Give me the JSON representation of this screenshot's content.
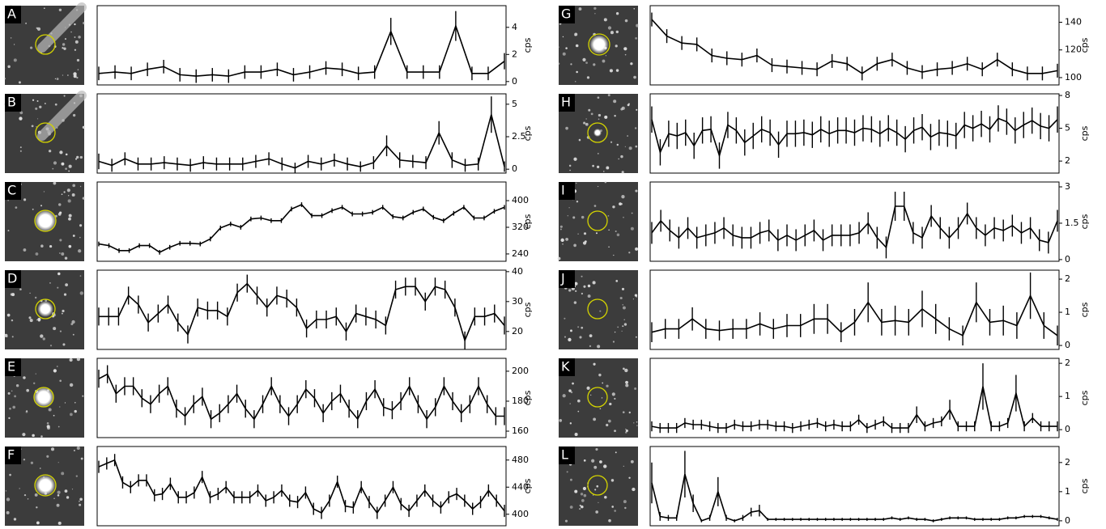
{
  "chart_data": [
    {
      "type": "line",
      "title": "A",
      "ylabel": "cps",
      "color": "#000000",
      "ylim": [
        -0.25,
        5.6
      ],
      "yticks": [
        0,
        2,
        4
      ],
      "values": [
        0.6,
        0.7,
        0.6,
        0.9,
        1.1,
        0.5,
        0.4,
        0.5,
        0.4,
        0.7,
        0.7,
        0.9,
        0.5,
        0.7,
        1.0,
        0.9,
        0.6,
        0.7,
        3.7,
        0.7,
        0.7,
        0.7,
        4.1,
        0.6,
        0.6,
        1.5
      ],
      "errors": [
        0.5,
        0.5,
        0.5,
        0.5,
        0.5,
        0.5,
        0.5,
        0.5,
        0.5,
        0.5,
        0.5,
        0.5,
        0.5,
        0.5,
        0.5,
        0.5,
        0.5,
        0.5,
        1.0,
        0.5,
        0.5,
        0.5,
        1.1,
        0.5,
        0.5,
        0.6
      ]
    },
    {
      "type": "line",
      "title": "B",
      "ylabel": "cps",
      "color": "#000000",
      "ylim": [
        -0.3,
        5.8
      ],
      "yticks": [
        0,
        2.5,
        5
      ],
      "values": [
        0.6,
        0.3,
        0.8,
        0.4,
        0.4,
        0.5,
        0.4,
        0.3,
        0.5,
        0.4,
        0.4,
        0.4,
        0.6,
        0.8,
        0.4,
        0.1,
        0.6,
        0.4,
        0.7,
        0.4,
        0.2,
        0.5,
        1.8,
        0.7,
        0.6,
        0.5,
        2.8,
        0.7,
        0.3,
        0.4,
        4.2,
        0.2
      ],
      "errors": [
        0.6,
        0.5,
        0.5,
        0.5,
        0.5,
        0.5,
        0.5,
        0.5,
        0.5,
        0.5,
        0.5,
        0.5,
        0.5,
        0.5,
        0.5,
        0.4,
        0.5,
        0.5,
        0.5,
        0.5,
        0.4,
        0.5,
        0.8,
        0.6,
        0.5,
        0.5,
        0.9,
        0.6,
        0.5,
        0.5,
        1.4,
        0.4
      ]
    },
    {
      "type": "line",
      "title": "C",
      "ylabel": "cps",
      "color": "#000000",
      "ylim": [
        218,
        456
      ],
      "yticks": [
        240,
        320,
        400
      ],
      "values": [
        270,
        265,
        250,
        250,
        265,
        265,
        245,
        260,
        272,
        272,
        270,
        285,
        318,
        330,
        320,
        345,
        348,
        340,
        340,
        375,
        388,
        355,
        355,
        370,
        380,
        360,
        360,
        365,
        380,
        352,
        348,
        365,
        375,
        350,
        340,
        362,
        380,
        348,
        348,
        368,
        380
      ],
      "errors": [
        7,
        7,
        7,
        7,
        7,
        7,
        7,
        7,
        7,
        7,
        7,
        7,
        7,
        7,
        7,
        7,
        7,
        7,
        7,
        7,
        7,
        7,
        7,
        7,
        7,
        7,
        7,
        7,
        7,
        7,
        7,
        7,
        7,
        7,
        7,
        7,
        7,
        7,
        7,
        7,
        7
      ]
    },
    {
      "type": "line",
      "title": "D",
      "ylabel": "cps",
      "color": "#000000",
      "ylim": [
        14,
        40.5
      ],
      "yticks": [
        20,
        30,
        40
      ],
      "values": [
        25,
        25,
        25,
        32,
        29,
        23,
        26,
        29,
        23,
        19,
        28,
        27,
        27,
        25,
        33,
        36,
        32,
        28,
        32,
        31,
        28,
        21,
        24,
        24,
        25,
        20,
        26,
        25,
        24,
        22,
        34,
        35,
        35,
        30,
        35,
        34,
        28,
        17,
        25,
        25,
        26,
        22
      ],
      "errors": [
        3,
        3,
        3,
        3,
        3,
        3,
        3,
        3,
        3,
        3,
        3,
        3,
        3,
        3,
        3,
        3,
        3,
        3,
        3,
        3,
        3,
        3,
        3,
        3,
        3,
        3,
        3,
        3,
        3,
        3,
        3,
        3,
        3,
        3,
        3,
        3,
        3,
        3,
        3,
        3,
        3,
        3
      ]
    },
    {
      "type": "line",
      "title": "E",
      "ylabel": "cps",
      "color": "#000000",
      "ylim": [
        155.7,
        208.6
      ],
      "yticks": [
        160,
        180,
        200
      ],
      "values": [
        195,
        198,
        185,
        190,
        190,
        182,
        178,
        185,
        190,
        175,
        170,
        178,
        183,
        168,
        172,
        178,
        185,
        175,
        168,
        178,
        190,
        178,
        170,
        178,
        188,
        182,
        172,
        180,
        185,
        175,
        168,
        180,
        188,
        176,
        174,
        180,
        190,
        178,
        168,
        176,
        190,
        180,
        172,
        178,
        190,
        178,
        170,
        170
      ],
      "errors": [
        6,
        6,
        6,
        6,
        6,
        6,
        6,
        6,
        6,
        6,
        6,
        6,
        6,
        6,
        6,
        6,
        6,
        6,
        6,
        6,
        6,
        6,
        6,
        6,
        6,
        6,
        6,
        6,
        6,
        6,
        6,
        6,
        6,
        6,
        6,
        6,
        6,
        6,
        6,
        6,
        6,
        6,
        6,
        6,
        6,
        6,
        6,
        6
      ]
    },
    {
      "type": "line",
      "title": "F",
      "ylabel": "cps",
      "color": "#000000",
      "ylim": [
        383,
        500
      ],
      "yticks": [
        400,
        440,
        480
      ],
      "values": [
        470,
        475,
        480,
        447,
        440,
        450,
        450,
        428,
        430,
        445,
        425,
        425,
        432,
        455,
        425,
        430,
        440,
        425,
        425,
        425,
        435,
        420,
        425,
        435,
        420,
        418,
        432,
        408,
        402,
        420,
        448,
        412,
        410,
        440,
        418,
        402,
        420,
        440,
        415,
        405,
        420,
        435,
        420,
        410,
        425,
        430,
        420,
        408,
        418,
        435,
        420,
        405
      ],
      "errors": [
        9,
        9,
        9,
        9,
        9,
        9,
        9,
        9,
        9,
        9,
        9,
        9,
        9,
        9,
        9,
        9,
        9,
        9,
        9,
        9,
        9,
        9,
        9,
        9,
        9,
        9,
        9,
        9,
        9,
        9,
        9,
        9,
        9,
        9,
        9,
        9,
        9,
        9,
        9,
        9,
        9,
        9,
        9,
        9,
        9,
        9,
        9,
        9,
        9,
        9,
        9,
        9
      ]
    },
    {
      "type": "line",
      "title": "G",
      "ylabel": "cps",
      "color": "#000000",
      "ylim": [
        94.7,
        152
      ],
      "yticks": [
        100,
        120,
        140
      ],
      "values": [
        142,
        130,
        125,
        124,
        116,
        114,
        113,
        116,
        109,
        108,
        107,
        106,
        112,
        110,
        103,
        110,
        113,
        107,
        104,
        106,
        107,
        110,
        106,
        113,
        106,
        103,
        103,
        105
      ],
      "errors": [
        5,
        5,
        5,
        5,
        5,
        5,
        5,
        5,
        5,
        5,
        5,
        5,
        5,
        5,
        5,
        5,
        5,
        5,
        5,
        5,
        5,
        5,
        5,
        5,
        5,
        5,
        5,
        5
      ]
    },
    {
      "type": "line",
      "title": "H",
      "ylabel": "cps",
      "color": "#000000",
      "ylim": [
        0.9,
        8.15
      ],
      "yticks": [
        2,
        5,
        8
      ],
      "values": [
        5.8,
        2.8,
        4.5,
        4.3,
        4.6,
        3.4,
        4.8,
        4.9,
        2.5,
        5.3,
        4.8,
        3.7,
        4.3,
        4.9,
        4.6,
        3.5,
        4.5,
        4.5,
        4.6,
        4.4,
        4.9,
        4.5,
        4.8,
        4.8,
        4.6,
        5.0,
        4.9,
        4.5,
        5.0,
        4.6,
        4.0,
        4.8,
        5.1,
        4.2,
        4.6,
        4.5,
        4.3,
        5.3,
        5.0,
        5.4,
        4.9,
        5.9,
        5.6,
        4.8,
        5.3,
        5.7,
        5.2,
        5.0,
        5.8
      ],
      "errors": [
        1.2,
        1.2,
        1.2,
        1.2,
        1.2,
        1.2,
        1.2,
        1.2,
        1.2,
        1.2,
        1.2,
        1.2,
        1.2,
        1.2,
        1.2,
        1.2,
        1.2,
        1.2,
        1.2,
        1.2,
        1.2,
        1.2,
        1.2,
        1.2,
        1.2,
        1.2,
        1.2,
        1.2,
        1.2,
        1.2,
        1.2,
        1.2,
        1.2,
        1.2,
        1.2,
        1.2,
        1.2,
        1.2,
        1.2,
        1.2,
        1.2,
        1.2,
        1.2,
        1.2,
        1.2,
        1.2,
        1.2,
        1.2,
        1.2
      ]
    },
    {
      "type": "line",
      "title": "I",
      "ylabel": "cps",
      "color": "#000000",
      "ylim": [
        -0.07,
        3.2
      ],
      "yticks": [
        0,
        1.5,
        3
      ],
      "values": [
        1.1,
        1.6,
        1.2,
        0.9,
        1.3,
        0.9,
        1.0,
        1.1,
        1.3,
        1.0,
        0.9,
        0.9,
        1.1,
        1.2,
        0.8,
        1.0,
        0.8,
        1.0,
        1.2,
        0.8,
        1.0,
        1.0,
        1.0,
        1.1,
        1.5,
        0.9,
        0.5,
        2.2,
        2.2,
        1.1,
        0.9,
        1.8,
        1.3,
        0.9,
        1.3,
        1.9,
        1.3,
        1.0,
        1.3,
        1.2,
        1.4,
        1.1,
        1.3,
        0.8,
        0.7,
        1.6
      ],
      "errors": [
        0.45,
        0.45,
        0.45,
        0.45,
        0.45,
        0.45,
        0.45,
        0.45,
        0.45,
        0.45,
        0.45,
        0.45,
        0.45,
        0.45,
        0.45,
        0.45,
        0.45,
        0.45,
        0.45,
        0.45,
        0.45,
        0.45,
        0.45,
        0.45,
        0.45,
        0.45,
        0.45,
        0.6,
        0.6,
        0.45,
        0.45,
        0.45,
        0.45,
        0.45,
        0.45,
        0.45,
        0.45,
        0.45,
        0.45,
        0.45,
        0.45,
        0.45,
        0.45,
        0.45,
        0.45,
        0.45
      ]
    },
    {
      "type": "line",
      "title": "J",
      "ylabel": "cps",
      "color": "#000000",
      "ylim": [
        -0.12,
        2.27
      ],
      "yticks": [
        0,
        1,
        2
      ],
      "values": [
        0.4,
        0.5,
        0.5,
        0.8,
        0.5,
        0.45,
        0.5,
        0.5,
        0.65,
        0.5,
        0.6,
        0.6,
        0.8,
        0.8,
        0.4,
        0.7,
        1.3,
        0.7,
        0.75,
        0.7,
        1.1,
        0.8,
        0.5,
        0.3,
        1.3,
        0.7,
        0.75,
        0.6,
        1.5,
        0.6,
        0.3
      ],
      "errors": [
        0.3,
        0.3,
        0.3,
        0.35,
        0.3,
        0.3,
        0.3,
        0.3,
        0.35,
        0.3,
        0.35,
        0.35,
        0.45,
        0.45,
        0.3,
        0.4,
        0.6,
        0.4,
        0.45,
        0.4,
        0.55,
        0.45,
        0.35,
        0.3,
        0.6,
        0.4,
        0.45,
        0.4,
        0.7,
        0.4,
        0.3
      ]
    },
    {
      "type": "line",
      "title": "K",
      "ylabel": "cps",
      "color": "#000000",
      "ylim": [
        -0.24,
        2.15
      ],
      "yticks": [
        0,
        1,
        2
      ],
      "values": [
        0.1,
        0.05,
        0.05,
        0.05,
        0.2,
        0.15,
        0.15,
        0.1,
        0.05,
        0.05,
        0.15,
        0.1,
        0.1,
        0.15,
        0.15,
        0.1,
        0.1,
        0.05,
        0.1,
        0.15,
        0.2,
        0.1,
        0.15,
        0.1,
        0.1,
        0.3,
        0.05,
        0.15,
        0.25,
        0.05,
        0.05,
        0.05,
        0.45,
        0.1,
        0.2,
        0.25,
        0.6,
        0.1,
        0.1,
        0.1,
        1.3,
        0.1,
        0.1,
        0.2,
        1.1,
        0.1,
        0.35,
        0.1,
        0.1,
        0.1
      ],
      "errors": [
        0.15,
        0.15,
        0.15,
        0.15,
        0.15,
        0.15,
        0.15,
        0.15,
        0.15,
        0.15,
        0.15,
        0.15,
        0.15,
        0.15,
        0.15,
        0.15,
        0.15,
        0.15,
        0.15,
        0.15,
        0.15,
        0.15,
        0.15,
        0.15,
        0.15,
        0.15,
        0.15,
        0.15,
        0.15,
        0.15,
        0.15,
        0.15,
        0.25,
        0.15,
        0.15,
        0.15,
        0.3,
        0.15,
        0.15,
        0.15,
        0.7,
        0.15,
        0.15,
        0.15,
        0.55,
        0.15,
        0.15,
        0.15,
        0.15,
        0.15
      ]
    },
    {
      "type": "line",
      "title": "L",
      "ylabel": "cps",
      "color": "#000000",
      "ylim": [
        -0.17,
        2.55
      ],
      "yticks": [
        0,
        1,
        2
      ],
      "values": [
        1.3,
        0.15,
        0.1,
        0.1,
        1.6,
        0.6,
        0.0,
        0.1,
        1.0,
        0.1,
        0.0,
        0.1,
        0.3,
        0.35,
        0.05,
        0.05,
        0.05,
        0.05,
        0.05,
        0.05,
        0.05,
        0.05,
        0.05,
        0.05,
        0.05,
        0.05,
        0.05,
        0.05,
        0.05,
        0.1,
        0.05,
        0.1,
        0.05,
        0.05,
        0.0,
        0.05,
        0.1,
        0.1,
        0.1,
        0.05,
        0.05,
        0.05,
        0.05,
        0.1,
        0.1,
        0.15,
        0.15,
        0.15,
        0.1,
        0.05
      ],
      "errors": [
        0.7,
        0.15,
        0.1,
        0.1,
        0.8,
        0.3,
        0.05,
        0.1,
        0.5,
        0.1,
        0.05,
        0.1,
        0.15,
        0.2,
        0.05,
        0.05,
        0.05,
        0.05,
        0.05,
        0.05,
        0.05,
        0.05,
        0.05,
        0.05,
        0.05,
        0.05,
        0.05,
        0.05,
        0.05,
        0.05,
        0.05,
        0.05,
        0.05,
        0.05,
        0.05,
        0.05,
        0.05,
        0.05,
        0.05,
        0.05,
        0.05,
        0.05,
        0.05,
        0.05,
        0.05,
        0.05,
        0.05,
        0.05,
        0.05,
        0.05
      ]
    }
  ]
}
